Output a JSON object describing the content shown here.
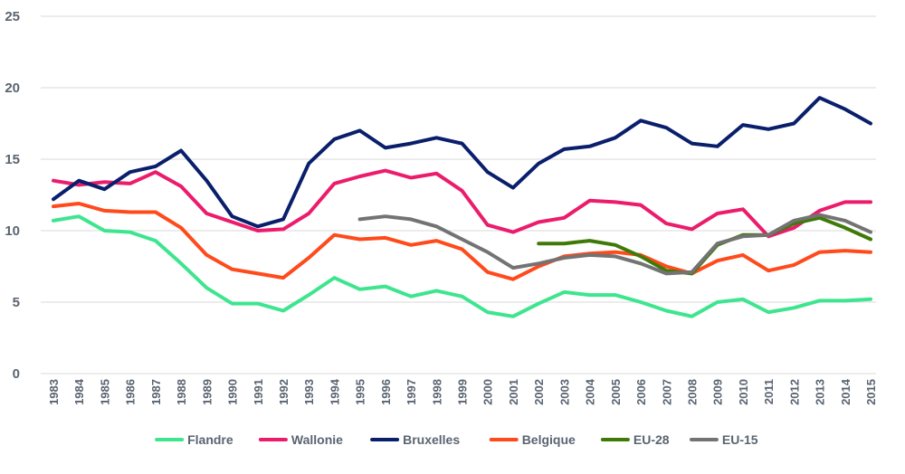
{
  "chart_data": {
    "type": "line",
    "title": "",
    "xlabel": "",
    "ylabel": "",
    "ylim": [
      0,
      25
    ],
    "yticks": [
      "0",
      "5",
      "10",
      "15",
      "20",
      "25"
    ],
    "grid": "horizontal",
    "legend_position": "bottom",
    "x": [
      "1983",
      "1984",
      "1985",
      "1986",
      "1987",
      "1988",
      "1989",
      "1990",
      "1991",
      "1992",
      "1993",
      "1994",
      "1995",
      "1996",
      "1997",
      "1998",
      "1999",
      "2000",
      "2001",
      "2002",
      "2003",
      "2004",
      "2005",
      "2006",
      "2007",
      "2008",
      "2009",
      "2010",
      "2011",
      "2012",
      "2013",
      "2014",
      "2015"
    ],
    "series": [
      {
        "name": "Flandre",
        "color": "#3ee58f",
        "values": [
          10.7,
          11.0,
          10.0,
          9.9,
          9.3,
          7.7,
          6.0,
          4.9,
          4.9,
          4.4,
          5.5,
          6.7,
          5.9,
          6.1,
          5.4,
          5.8,
          5.4,
          4.3,
          4.0,
          4.9,
          5.7,
          5.5,
          5.5,
          5.0,
          4.4,
          4.0,
          5.0,
          5.2,
          4.3,
          4.6,
          5.1,
          5.1,
          5.2
        ]
      },
      {
        "name": "Wallonie",
        "color": "#eb1c6c",
        "values": [
          13.5,
          13.2,
          13.4,
          13.3,
          14.1,
          13.1,
          11.2,
          10.6,
          10.0,
          10.1,
          11.2,
          13.3,
          13.8,
          14.2,
          13.7,
          14.0,
          12.8,
          10.4,
          9.9,
          10.6,
          10.9,
          12.1,
          12.0,
          11.8,
          10.5,
          10.1,
          11.2,
          11.5,
          9.6,
          10.2,
          11.4,
          12.0,
          12.0
        ]
      },
      {
        "name": "Bruxelles",
        "color": "#0a1f6b",
        "values": [
          12.2,
          13.5,
          12.9,
          14.1,
          14.5,
          15.6,
          13.5,
          11.0,
          10.3,
          10.8,
          14.7,
          16.4,
          17.0,
          15.8,
          16.1,
          16.5,
          16.1,
          14.1,
          13.0,
          14.7,
          15.7,
          15.9,
          16.5,
          17.7,
          17.2,
          16.1,
          15.9,
          17.4,
          17.1,
          17.5,
          19.3,
          18.5,
          17.5
        ]
      },
      {
        "name": "Belgique",
        "color": "#ff4a1c",
        "values": [
          11.7,
          11.9,
          11.4,
          11.3,
          11.3,
          10.2,
          8.3,
          7.3,
          7.0,
          6.7,
          8.1,
          9.7,
          9.4,
          9.5,
          9.0,
          9.3,
          8.7,
          7.1,
          6.6,
          7.5,
          8.2,
          8.4,
          8.5,
          8.3,
          7.5,
          7.0,
          7.9,
          8.3,
          7.2,
          7.6,
          8.5,
          8.6,
          8.5
        ]
      },
      {
        "name": "EU-28",
        "color": "#3f7a08",
        "values": [
          null,
          null,
          null,
          null,
          null,
          null,
          null,
          null,
          null,
          null,
          null,
          null,
          null,
          null,
          null,
          null,
          null,
          null,
          null,
          9.1,
          9.1,
          9.3,
          9.0,
          8.2,
          7.2,
          7.0,
          9.0,
          9.7,
          9.7,
          10.5,
          10.9,
          10.2,
          9.4
        ]
      },
      {
        "name": "EU-15",
        "color": "#737373",
        "values": [
          null,
          null,
          null,
          null,
          null,
          null,
          null,
          null,
          null,
          null,
          null,
          null,
          10.8,
          11.0,
          10.8,
          10.3,
          9.4,
          8.5,
          7.4,
          7.7,
          8.1,
          8.3,
          8.2,
          7.7,
          7.0,
          7.1,
          9.1,
          9.6,
          9.7,
          10.7,
          11.1,
          10.7,
          9.9
        ]
      }
    ]
  }
}
